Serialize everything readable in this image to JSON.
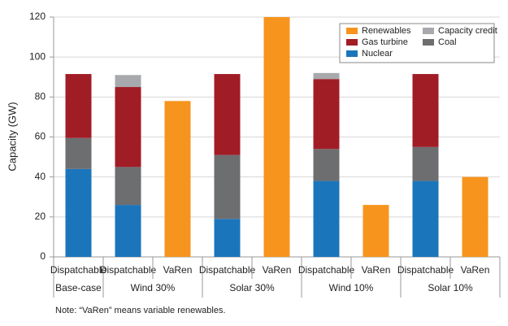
{
  "chart_data": {
    "type": "stacked-bar",
    "y_label": "Capacity (GW)",
    "note": "Note: “VaRen” means variable renewables.",
    "groups": [
      {
        "label": "Base-case",
        "categories": [
          "Dispatchable"
        ]
      },
      {
        "label": "Wind 30%",
        "categories": [
          "Dispatchable",
          "VaRen"
        ]
      },
      {
        "label": "Solar 30%",
        "categories": [
          "Dispatchable",
          "VaRen"
        ]
      },
      {
        "label": "Wind 10%",
        "categories": [
          "Dispatchable",
          "VaRen"
        ]
      },
      {
        "label": "Solar 10%",
        "categories": [
          "Dispatchable",
          "VaRen"
        ]
      }
    ],
    "series": [
      {
        "name": "Nuclear",
        "color": "#1b75bb",
        "values": [
          44,
          26,
          null,
          19,
          null,
          38,
          null,
          38,
          null
        ]
      },
      {
        "name": "Coal",
        "color": "#6d6e70",
        "values": [
          15.5,
          19,
          null,
          32,
          null,
          16,
          null,
          17,
          null
        ]
      },
      {
        "name": "Gas turbine",
        "color": "#a01d26",
        "values": [
          32,
          40,
          null,
          40.5,
          null,
          35,
          null,
          36.5,
          null
        ]
      },
      {
        "name": "Capacity credit",
        "color": "#a7a9ac",
        "values": [
          null,
          6,
          null,
          null,
          null,
          3,
          null,
          null,
          null
        ]
      },
      {
        "name": "Renewables",
        "color": "#f7941d",
        "values": [
          null,
          null,
          78,
          null,
          120,
          null,
          26,
          null,
          40
        ]
      }
    ],
    "ylim": [
      0,
      120
    ],
    "yticks": [
      0,
      20,
      40,
      60,
      80,
      100,
      120
    ],
    "grid": true,
    "legend": "upper right"
  }
}
